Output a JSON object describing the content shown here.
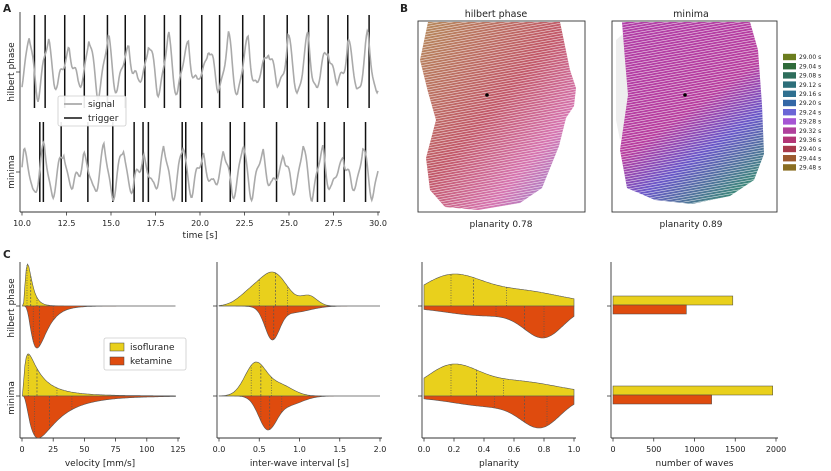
{
  "chart_data": [
    {
      "panel": "A",
      "type": "line",
      "title": "",
      "xlabel": "time [s]",
      "xlim": [
        10.0,
        30.0
      ],
      "xticks": [
        "10.0",
        "12.5",
        "15.0",
        "17.5",
        "20.0",
        "22.5",
        "25.0",
        "27.5",
        "30.0"
      ],
      "row_labels": [
        "hilbert phase",
        "minima"
      ],
      "legend": [
        "signal",
        "trigger"
      ],
      "colors": {
        "signal": "#aaaaaa",
        "trigger": "#111111"
      },
      "series": [
        {
          "name": "hilbert phase triggers",
          "x": [
            10.7,
            11.3,
            12.4,
            13.5,
            14.8,
            15.8,
            16.9,
            18.0,
            18.9,
            20.1,
            21.1,
            22.4,
            23.6,
            24.9,
            26.1,
            27.2,
            28.3,
            29.5
          ]
        },
        {
          "name": "minima triggers",
          "x": [
            11.0,
            11.2,
            12.2,
            13.7,
            15.1,
            16.3,
            16.8,
            17.1,
            19.0,
            19.2,
            20.1,
            21.7,
            22.5,
            24.3,
            26.6,
            27.0,
            28.1,
            29.3
          ]
        }
      ]
    },
    {
      "panel": "B",
      "type": "heatmap",
      "titles": [
        "hilbert phase",
        "minima"
      ],
      "captions": [
        "planarity 0.78",
        "planarity 0.89"
      ],
      "colorbar_labels": [
        "29.00 s",
        "29.04 s",
        "29.08 s",
        "29.12 s",
        "29.16 s",
        "29.20 s",
        "29.24 s",
        "29.28 s",
        "29.32 s",
        "29.36 s",
        "29.40 s",
        "29.44 s",
        "29.48 s"
      ],
      "colorbar_colors": [
        "#6b7d1e",
        "#2f6b3a",
        "#2e6e5c",
        "#2d6f7a",
        "#2f7090",
        "#3367a6",
        "#6b66d6",
        "#a655d4",
        "#b0409c",
        "#b33677",
        "#a83a4c",
        "#9c5a2f",
        "#8a6e22"
      ]
    },
    {
      "panel": "C",
      "type": "violin",
      "row_labels": [
        "hilbert phase",
        "minima"
      ],
      "legend": [
        "isoflurane",
        "ketamine"
      ],
      "colors": {
        "isoflurane": "#e9d01c",
        "ketamine": "#df4b0e"
      },
      "subplots": [
        {
          "xlabel": "velocity [mm/s]",
          "xlim": [
            0,
            125
          ],
          "xticks": [
            "0",
            "25",
            "50",
            "75",
            "100",
            "125"
          ],
          "quartiles": {
            "hilbert_isoflurane": [
              4,
              7,
              12
            ],
            "hilbert_ketamine": [
              9,
              14,
              25
            ],
            "minima_isoflurane": [
              5,
              12,
              28
            ],
            "minima_ketamine": [
              10,
              22,
              40
            ]
          }
        },
        {
          "xlabel": "inter-wave interval [s]",
          "xlim": [
            0.0,
            2.0
          ],
          "xticks": [
            "0.0",
            "0.5",
            "1.0",
            "1.5",
            "2.0"
          ],
          "quartiles": {
            "hilbert_isoflurane": [
              0.5,
              0.7,
              0.85
            ],
            "hilbert_ketamine": [
              0.58,
              0.68,
              0.85
            ],
            "minima_isoflurane": [
              0.4,
              0.52,
              0.65
            ],
            "minima_ketamine": [
              0.52,
              0.63,
              0.78
            ]
          }
        },
        {
          "xlabel": "planarity",
          "xlim": [
            0.0,
            1.0
          ],
          "xticks": [
            "0.0",
            "0.2",
            "0.4",
            "0.6",
            "0.8",
            "1.0"
          ],
          "quartiles": {
            "hilbert_isoflurane": [
              0.18,
              0.33,
              0.55
            ],
            "hilbert_ketamine": [
              0.48,
              0.67,
              0.8
            ],
            "minima_isoflurane": [
              0.18,
              0.35,
              0.53
            ],
            "minima_ketamine": [
              0.47,
              0.67,
              0.82
            ]
          }
        },
        {
          "type": "bar",
          "xlabel": "number of waves",
          "xlim": [
            0,
            2000
          ],
          "xticks": [
            "0",
            "500",
            "1000",
            "1500",
            "2000"
          ],
          "values": {
            "hilbert_isoflurane": 1470,
            "hilbert_ketamine": 900,
            "minima_isoflurane": 1960,
            "minima_ketamine": 1210
          }
        }
      ]
    }
  ]
}
